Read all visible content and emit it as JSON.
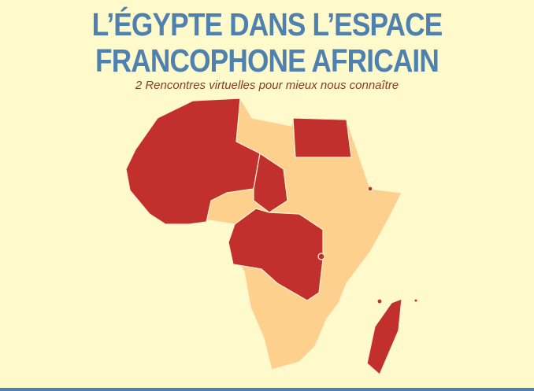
{
  "title_line1": "L’ÉGYPTE DANS L’ESPACE",
  "title_line2": "FRANCOPHONE AFRICAIN",
  "subtitle": "2 Rencontres virtuelles pour mieux nous connaître",
  "colors": {
    "background": "#fffacb",
    "title": "#4f81b0",
    "subtitle": "#8b3a22",
    "francophone": "#c1302c",
    "other": "#fdd08e",
    "border": "#fff4d0"
  }
}
